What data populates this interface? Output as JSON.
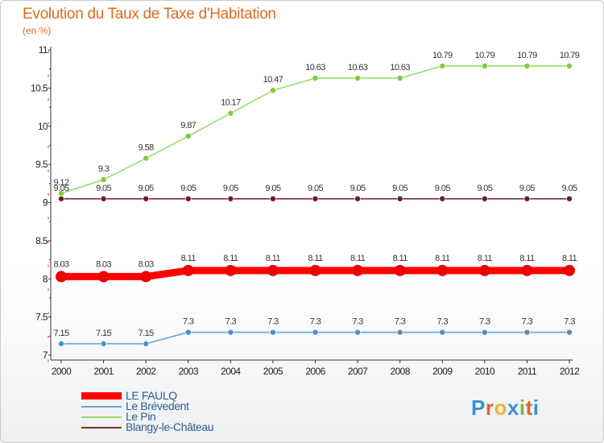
{
  "header": {
    "title": "Evolution du Taux de Taxe d'Habitation",
    "unit": "(en %)"
  },
  "brand": {
    "text": "Proxiti"
  },
  "colors": {
    "le_faulq": "#ff0000",
    "le_brevedent": "#6fa3cf",
    "le_pin": "#99dd66",
    "blangy": "#7a2e2e",
    "title": "#e06a1e"
  },
  "chart_data": {
    "type": "line",
    "x": [
      "2000",
      "2001",
      "2002",
      "2003",
      "2004",
      "2005",
      "2006",
      "2007",
      "2008",
      "2009",
      "2010",
      "2011",
      "2012"
    ],
    "ylim": [
      7,
      11
    ],
    "yticks": [
      "7",
      "7.5",
      "8",
      "8.5",
      "9",
      "9.5",
      "10",
      "10.5",
      "11"
    ],
    "grid": false,
    "series": [
      {
        "name": "LE FAULQ",
        "values": [
          8.03,
          8.03,
          8.03,
          8.11,
          8.11,
          8.11,
          8.11,
          8.11,
          8.11,
          8.11,
          8.11,
          8.11,
          8.11
        ],
        "labels": [
          "8.03",
          "8.03",
          "8.03",
          "8.11",
          "8.11",
          "8.11",
          "8.11",
          "8.11",
          "8.11",
          "8.11",
          "8.11",
          "8.11",
          "8.11"
        ]
      },
      {
        "name": "Le Brévedent",
        "values": [
          7.15,
          7.15,
          7.15,
          7.3,
          7.3,
          7.3,
          7.3,
          7.3,
          7.3,
          7.3,
          7.3,
          7.3,
          7.3
        ],
        "labels": [
          "7.15",
          "7.15",
          "7.15",
          "7.3",
          "7.3",
          "7.3",
          "7.3",
          "7.3",
          "7.3",
          "7.3",
          "7.3",
          "7.3",
          "7.3"
        ]
      },
      {
        "name": "Le Pin",
        "values": [
          9.12,
          9.3,
          9.58,
          9.87,
          10.17,
          10.47,
          10.63,
          10.63,
          10.63,
          10.79,
          10.79,
          10.79,
          10.79
        ],
        "labels": [
          "9.12",
          "9.3",
          "9.58",
          "9.87",
          "10.17",
          "10.47",
          "10.63",
          "10.63",
          "10.63",
          "10.79",
          "10.79",
          "10.79",
          "10.79"
        ]
      },
      {
        "name": "Blangy-le-Château",
        "values": [
          9.05,
          9.05,
          9.05,
          9.05,
          9.05,
          9.05,
          9.05,
          9.05,
          9.05,
          9.05,
          9.05,
          9.05,
          9.05
        ],
        "labels": [
          "9.05",
          "9.05",
          "9.05",
          "9.05",
          "9.05",
          "9.05",
          "9.05",
          "9.05",
          "9.05",
          "9.05",
          "9.05",
          "9.05",
          "9.05"
        ]
      }
    ],
    "legend_position": "bottom-left"
  }
}
